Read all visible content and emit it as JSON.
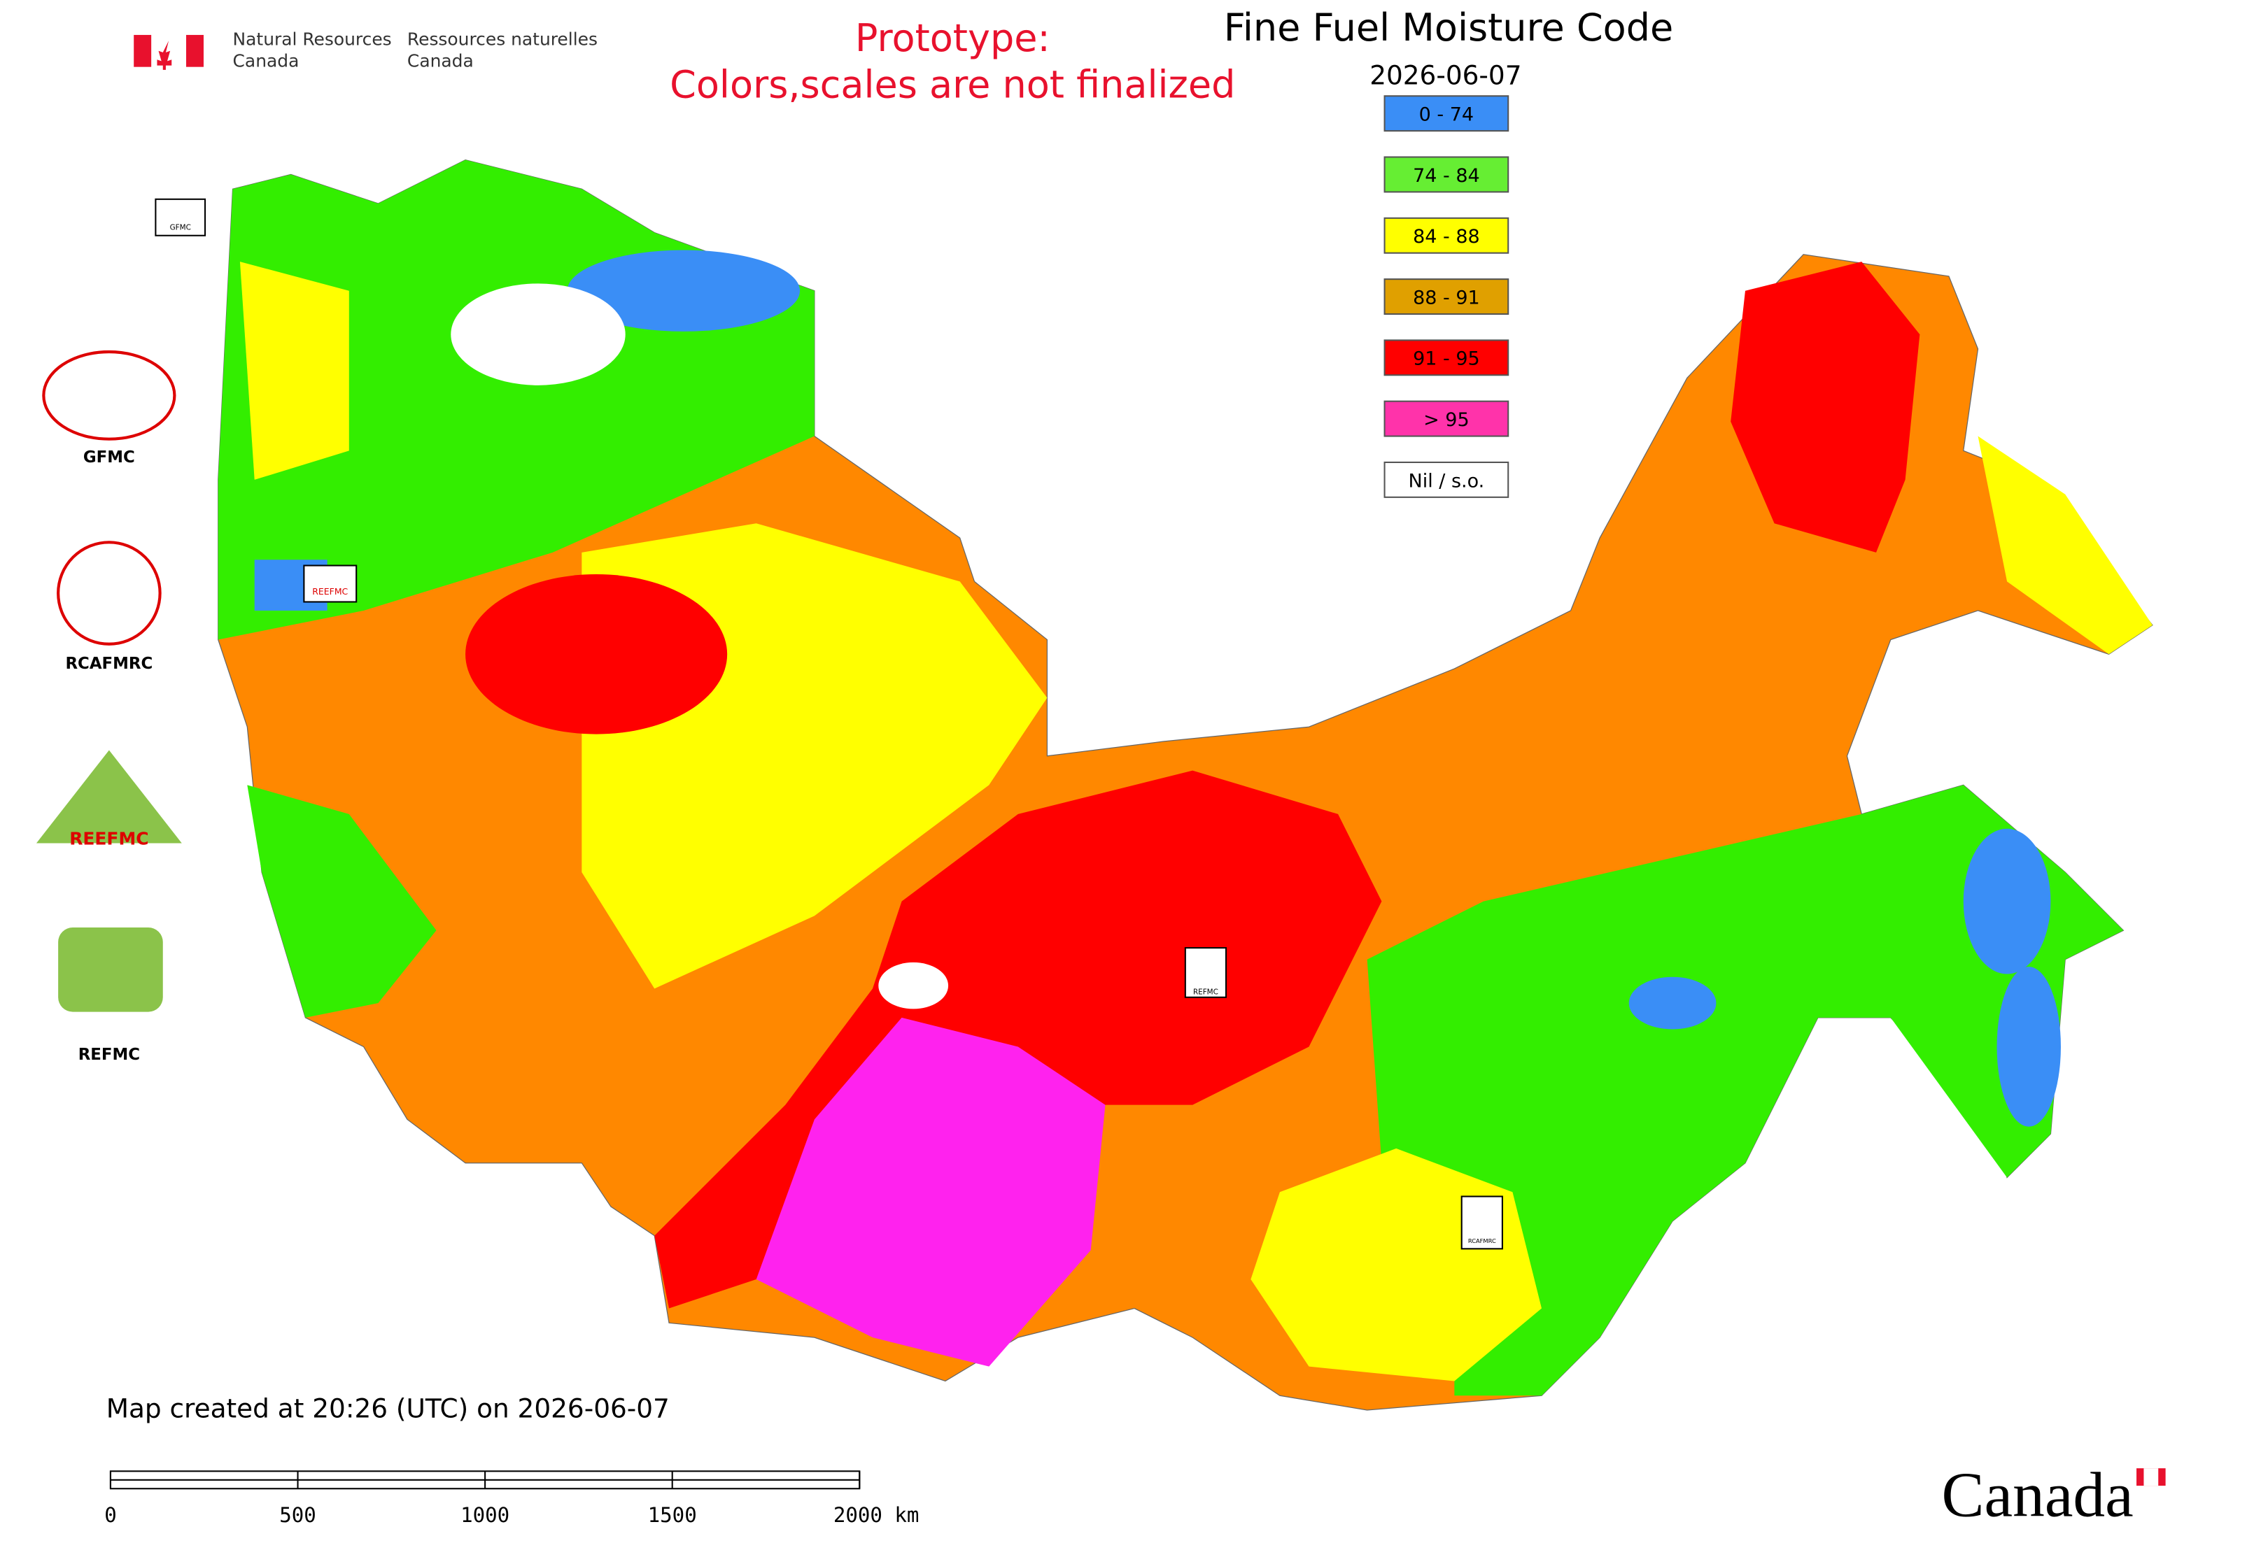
{
  "header": {
    "department_en": [
      "Natural Resources",
      "Canada"
    ],
    "department_fr": [
      "Ressources naturelles",
      "Canada"
    ]
  },
  "notice": [
    "Prototype:",
    "Colors,scales are not finalized"
  ],
  "title": "Fine Fuel Moisture Code",
  "date": "2026-06-07",
  "legend": [
    {
      "label": "0 - 74",
      "color": "#3a8ef6"
    },
    {
      "label": "74 - 84",
      "color": "#66ee33"
    },
    {
      "label": "84 - 88",
      "color": "#ffff00"
    },
    {
      "label": "88 - 91",
      "color": "#e0a000"
    },
    {
      "label": "91 - 95",
      "color": "#ff0000"
    },
    {
      "label": "> 95",
      "color": "#ff33aa"
    },
    {
      "label": "Nil / s.o.",
      "color": "#ffffff"
    }
  ],
  "logos": [
    "GFMC",
    "RCAFMRC",
    "REEFMC",
    "REFMC"
  ],
  "map_markers": [
    "GFMC",
    "REEFMC",
    "REFMC",
    "RCAFMRC"
  ],
  "footer": "Map created at 20:26 (UTC) on 2026-06-07",
  "scale_bar": [
    "0",
    "500",
    "1000",
    "1500",
    "2000 km"
  ],
  "wordmark": "Canada"
}
